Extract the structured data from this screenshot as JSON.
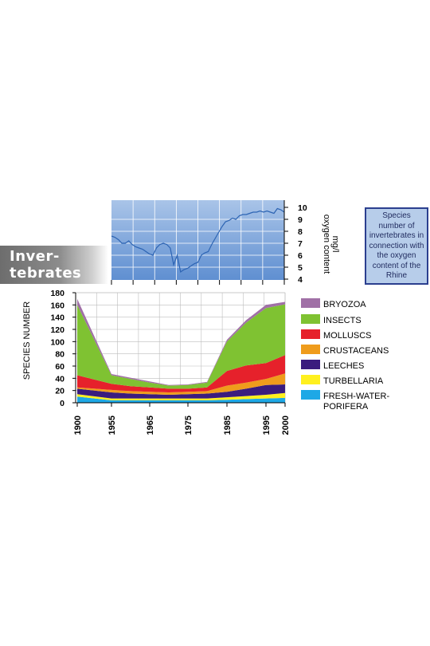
{
  "title_block": {
    "line1": "Inver-",
    "line2": "tebrates"
  },
  "note": "Species number of invertebrates in connection with the oxygen content of the Rhine",
  "colors": {
    "panel_top": "#a9c4e8",
    "panel_bottom": "#5f8fd1",
    "oxygen_line": "#2d64b3",
    "bryozoa": "#a070a6",
    "insects": "#7fc232",
    "molluscs": "#e6212b",
    "crustaceans": "#ef9c1c",
    "leeches": "#3a1c7e",
    "turbellaria": "#fff01e",
    "porifera": "#1ea8e6",
    "note_bg": "#b7cdea"
  },
  "chart_data": [
    {
      "type": "line",
      "ylabel": "oxygen content mg/l",
      "ylim": [
        4,
        10
      ],
      "yticks": [
        "10",
        "9",
        "8",
        "7",
        "6",
        "5",
        "4"
      ],
      "grid": true,
      "series": [
        {
          "x": [
            1950,
            1951,
            1952,
            1953,
            1954,
            1955,
            1956,
            1957,
            1958,
            1959,
            1960,
            1961,
            1962,
            1963,
            1964,
            1965,
            1966,
            1967,
            1968,
            1969,
            1970,
            1971,
            1972,
            1973,
            1974,
            1975,
            1976,
            1977,
            1978,
            1979,
            1980,
            1981,
            1982,
            1983,
            1984,
            1985,
            1986,
            1987,
            1988,
            1989,
            1990,
            1991,
            1992,
            1993,
            1994,
            1995,
            1996,
            1997,
            1998,
            1999,
            2000
          ],
          "values": [
            7.6,
            7.5,
            7.3,
            7.0,
            7.0,
            7.2,
            6.9,
            6.7,
            6.6,
            6.5,
            6.3,
            6.1,
            6.0,
            6.6,
            6.9,
            7.0,
            6.9,
            6.6,
            5.2,
            6.0,
            4.6,
            4.8,
            4.9,
            5.1,
            5.3,
            5.4,
            6.0,
            6.2,
            6.3,
            6.9,
            7.4,
            7.9,
            8.4,
            8.8,
            8.9,
            9.1,
            9.0,
            9.3,
            9.4,
            9.4,
            9.5,
            9.6,
            9.6,
            9.7,
            9.6,
            9.7,
            9.6,
            9.5,
            9.9,
            9.8,
            9.6
          ]
        }
      ]
    },
    {
      "type": "area",
      "stacked": true,
      "ylabel": "SPECIES NUMBER",
      "ylim": [
        0,
        180
      ],
      "yticks": [
        "180",
        "160",
        "140",
        "120",
        "100",
        "80",
        "60",
        "40",
        "20",
        "0"
      ],
      "x": [
        1900,
        1955,
        1960,
        1965,
        1970,
        1975,
        1980,
        1985,
        1990,
        1995,
        2000
      ],
      "xticks": [
        "1900",
        "1955",
        "1965",
        "1975",
        "1985",
        "1995",
        "2000"
      ],
      "series": [
        {
          "name": "FRESH-WATER-PORIFERA",
          "values": [
            10,
            4,
            4,
            4,
            4,
            4,
            4,
            5,
            6,
            7,
            8
          ]
        },
        {
          "name": "TURBELLARIA",
          "values": [
            4,
            3,
            3,
            3,
            3,
            3,
            3,
            4,
            5,
            6,
            8
          ]
        },
        {
          "name": "LEECHES",
          "values": [
            9,
            10,
            8,
            7,
            6,
            7,
            8,
            9,
            12,
            16,
            14
          ]
        },
        {
          "name": "CRUSTACEANS",
          "values": [
            2,
            4,
            4,
            4,
            4,
            4,
            4,
            10,
            10,
            10,
            18
          ]
        },
        {
          "name": "MOLLUSCS",
          "values": [
            20,
            10,
            8,
            7,
            6,
            5,
            6,
            24,
            28,
            26,
            30
          ]
        },
        {
          "name": "INSECTS",
          "values": [
            115,
            14,
            12,
            8,
            5,
            6,
            8,
            48,
            70,
            90,
            83
          ]
        },
        {
          "name": "BRYOZOA",
          "values": [
            10,
            2,
            2,
            2,
            1,
            1,
            1,
            3,
            4,
            5,
            4
          ]
        }
      ],
      "legend": [
        "BRYOZOA",
        "INSECTS",
        "MOLLUSCS",
        "CRUSTACEANS",
        "LEECHES",
        "TURBELLARIA",
        "FRESH-WATER-PORIFERA"
      ]
    }
  ]
}
